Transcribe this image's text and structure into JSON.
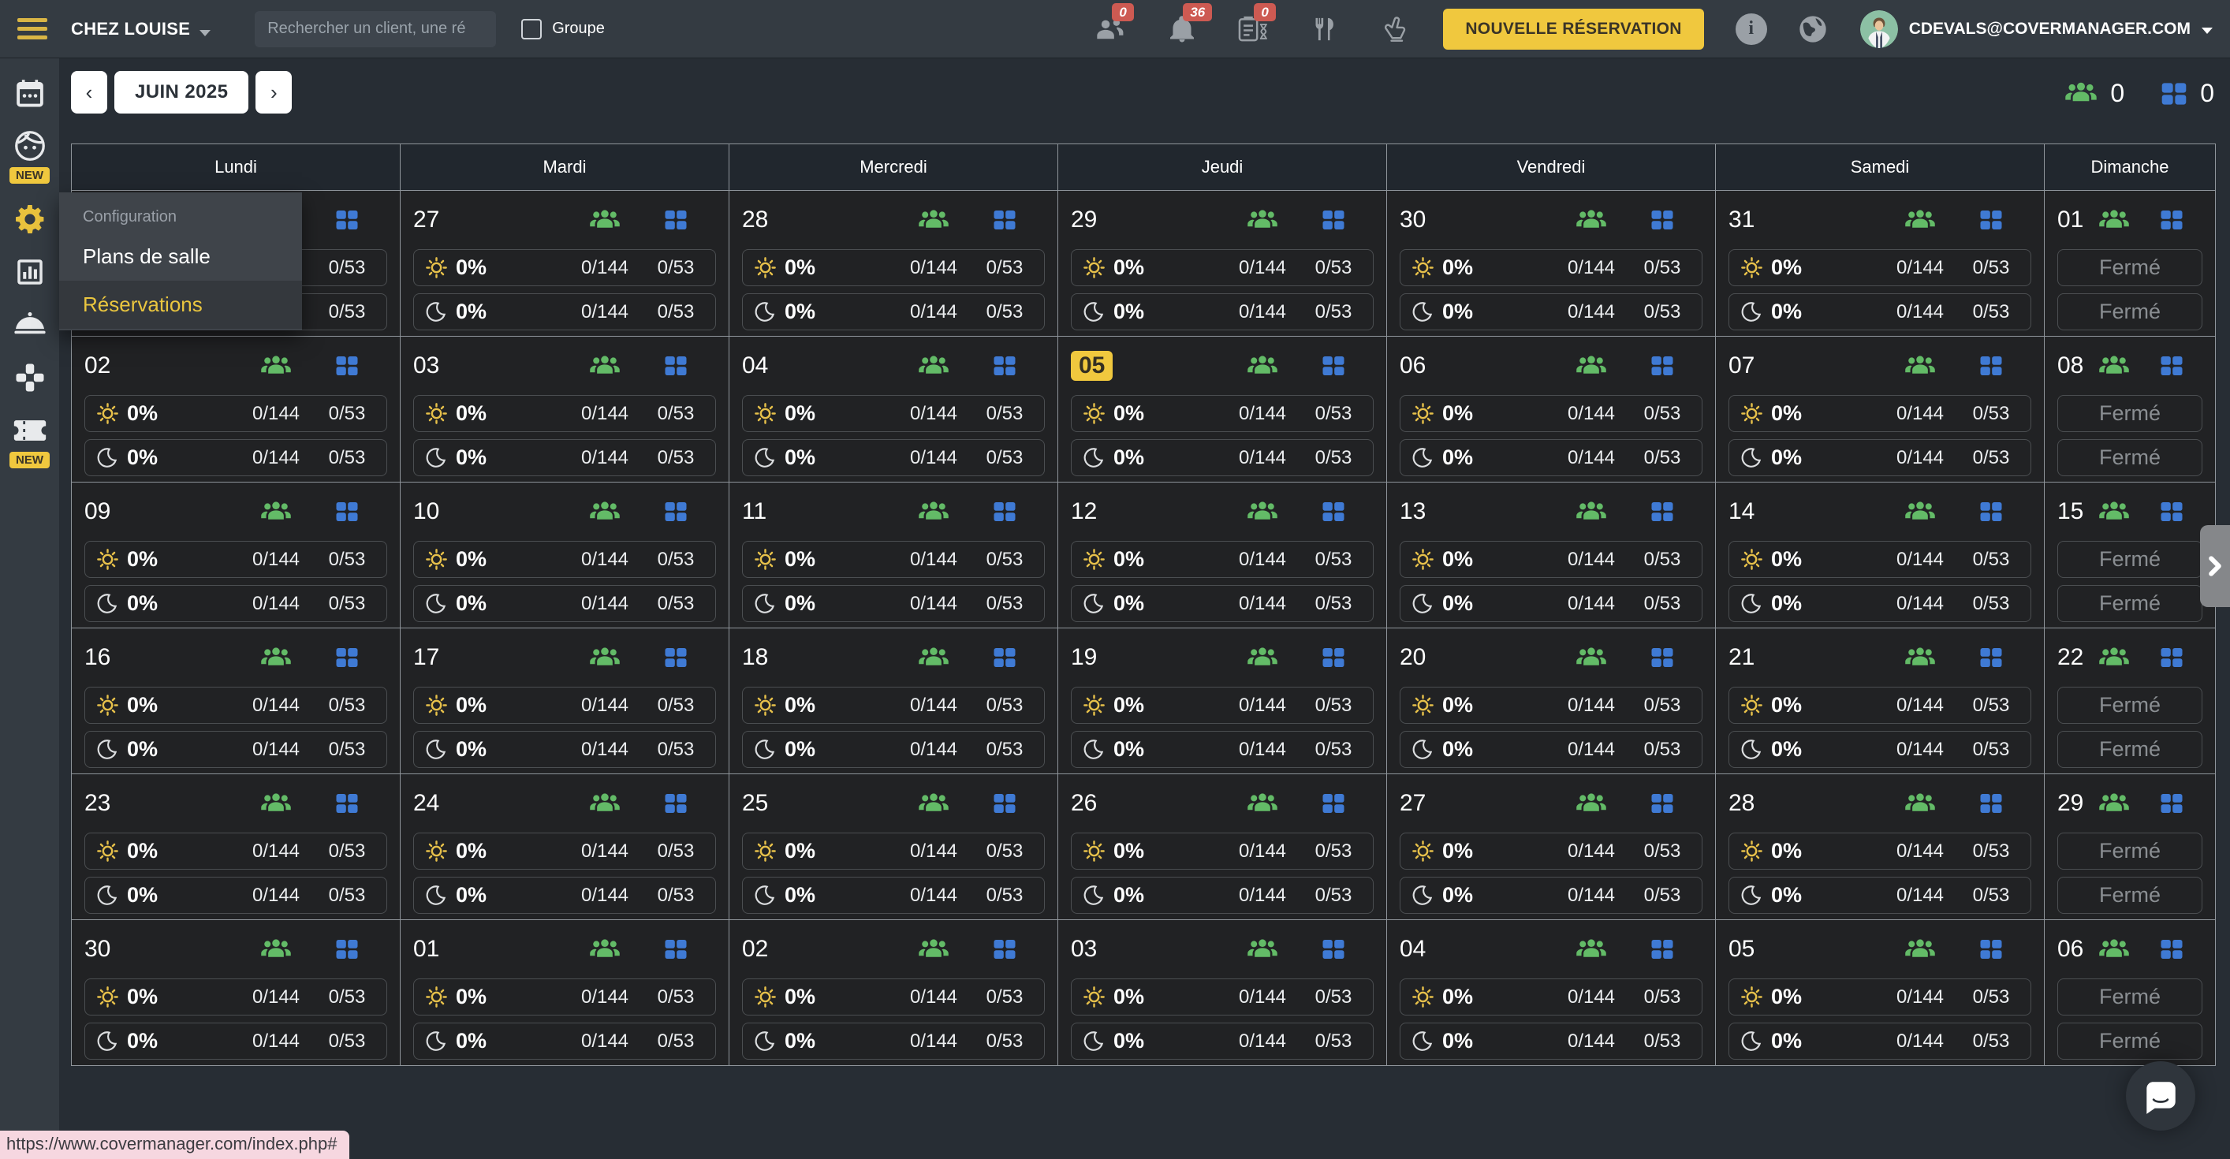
{
  "topbar": {
    "venue": "CHEZ LOUISE",
    "search_placeholder": "Rechercher un client, une ré",
    "group_label": "Groupe",
    "badges": {
      "clients": "0",
      "notifications": "36",
      "waitlist": "0"
    },
    "new_reservation_label": "NOUVELLE RÉSERVATION",
    "account_email": "CDEVALS@COVERMANAGER.COM"
  },
  "sidebar": {
    "items": [
      {
        "id": "calendar",
        "icon": "calendar-icon"
      },
      {
        "id": "diners",
        "icon": "diner-face-icon",
        "badge": "NEW"
      },
      {
        "id": "configuration",
        "icon": "gear-icon",
        "active": true
      },
      {
        "id": "statistics",
        "icon": "bar-chart-icon"
      },
      {
        "id": "services",
        "icon": "cloche-icon"
      },
      {
        "id": "apps",
        "icon": "apps-cross-icon"
      },
      {
        "id": "vouchers",
        "icon": "ticket-icon",
        "badge": "NEW"
      }
    ]
  },
  "menu": {
    "section_label": "Configuration",
    "items": [
      {
        "label": "Plans de salle",
        "active": false
      },
      {
        "label": "Réservations",
        "active": true
      }
    ]
  },
  "toolbar": {
    "month_label": "JUIN 2025",
    "counters": {
      "covers": "0",
      "tables": "0"
    }
  },
  "calendar": {
    "weekdays": [
      "Lundi",
      "Mardi",
      "Mercredi",
      "Jeudi",
      "Vendredi",
      "Samedi",
      "Dimanche"
    ],
    "closed_label": "Fermé",
    "default_stats": {
      "pct": "0%",
      "covers": "0/144",
      "tables": "0/53"
    },
    "weeks": [
      [
        {
          "day": ""
        },
        {
          "day": "27"
        },
        {
          "day": "28"
        },
        {
          "day": "29"
        },
        {
          "day": "30"
        },
        {
          "day": "31"
        },
        {
          "day": "01",
          "closed": true
        }
      ],
      [
        {
          "day": "02"
        },
        {
          "day": "03"
        },
        {
          "day": "04"
        },
        {
          "day": "05",
          "today": true
        },
        {
          "day": "06"
        },
        {
          "day": "07"
        },
        {
          "day": "08",
          "closed": true
        }
      ],
      [
        {
          "day": "09"
        },
        {
          "day": "10"
        },
        {
          "day": "11"
        },
        {
          "day": "12"
        },
        {
          "day": "13"
        },
        {
          "day": "14"
        },
        {
          "day": "15",
          "closed": true
        }
      ],
      [
        {
          "day": "16"
        },
        {
          "day": "17"
        },
        {
          "day": "18"
        },
        {
          "day": "19"
        },
        {
          "day": "20"
        },
        {
          "day": "21"
        },
        {
          "day": "22",
          "closed": true
        }
      ],
      [
        {
          "day": "23"
        },
        {
          "day": "24"
        },
        {
          "day": "25"
        },
        {
          "day": "26"
        },
        {
          "day": "27"
        },
        {
          "day": "28"
        },
        {
          "day": "29",
          "closed": true
        }
      ],
      [
        {
          "day": "30"
        },
        {
          "day": "01"
        },
        {
          "day": "02"
        },
        {
          "day": "03"
        },
        {
          "day": "04"
        },
        {
          "day": "05"
        },
        {
          "day": "06",
          "closed": true
        }
      ]
    ]
  },
  "statusbar": {
    "url": "https://www.covermanager.com/index.php#"
  },
  "colors": {
    "accent": "#f0c83e",
    "badge_red": "#cd5a52",
    "covers_green": "#63bb67",
    "tables_blue": "#3f7ad4",
    "sun_yellow": "#e6c04a",
    "topbar_gray": "#343b42",
    "page_bg": "#272d34"
  }
}
